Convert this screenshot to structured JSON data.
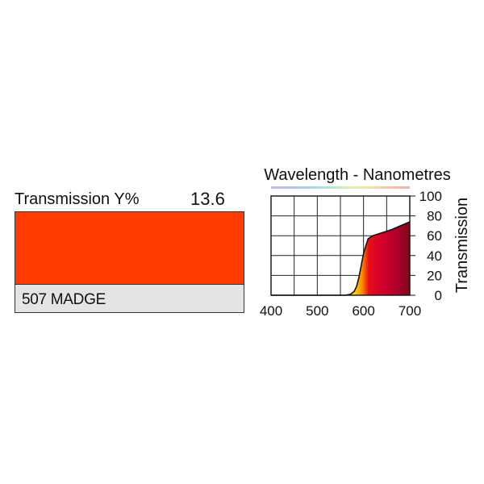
{
  "swatch": {
    "transmission_label": "Transmission Y%",
    "transmission_value": "13.6",
    "filter_name": "507 MADGE",
    "color": "#ff3b00",
    "name_band_color": "#e5e5e5"
  },
  "chart_data": {
    "type": "area",
    "title": "Wavelength - Nanometres",
    "xlabel": "",
    "ylabel": "Transmission",
    "xlim": [
      400,
      700
    ],
    "ylim": [
      0,
      100
    ],
    "x_ticks": [
      400,
      500,
      600,
      700
    ],
    "y_ticks": [
      0,
      20,
      40,
      60,
      80,
      100
    ],
    "grid": true,
    "y_axis_side": "right",
    "series": [
      {
        "x": [
          400,
          560,
          572,
          580,
          585,
          590,
          595,
          600,
          605,
          610,
          620,
          640,
          660,
          680,
          700
        ],
        "y": [
          0,
          0,
          1,
          4,
          9,
          18,
          30,
          42,
          50,
          57,
          60,
          63,
          66,
          70,
          74
        ]
      }
    ],
    "fill_gradient": [
      "#ffd400",
      "#ff8a00",
      "#e8101a",
      "#d4002a",
      "#b0002c",
      "#7a0a18"
    ]
  }
}
